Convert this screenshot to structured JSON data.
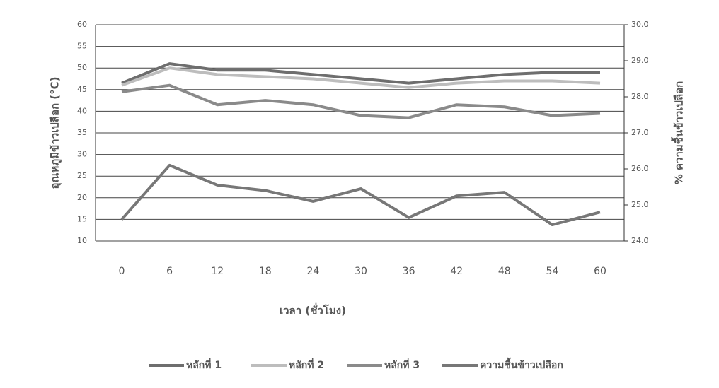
{
  "chart_data": {
    "type": "line",
    "y_label": "อุณหภูมิข้าวเปลือก (°C)",
    "y2_label": "% ความชื้นข้าวเปลือก",
    "x_label": "เวลา (ชั่วโมง)",
    "categories": [
      "0",
      "6",
      "12",
      "18",
      "24",
      "30",
      "36",
      "42",
      "48",
      "54",
      "60"
    ],
    "series": [
      {
        "name": "หลักที่ 1",
        "color": "#6e6e6e",
        "values": [
          46.5,
          51,
          49.5,
          49.5,
          48.5,
          47.5,
          46.5,
          47.5,
          48.5,
          49,
          49
        ]
      },
      {
        "name": "หลักที่ 2",
        "color": "#bdbdbd",
        "values": [
          46,
          50,
          48.5,
          48,
          47.5,
          46.5,
          45.5,
          46.5,
          47,
          47,
          46.5
        ]
      },
      {
        "name": "หลักที่ 3",
        "color": "#8a8a8a",
        "values": [
          44.5,
          46,
          41.5,
          42.5,
          41.5,
          39,
          38.5,
          41.5,
          41,
          39,
          39.5
        ]
      },
      {
        "name": "ความชื้นข้าวเปลือก",
        "color": "#777777",
        "axis": "y2",
        "values": [
          24.6,
          26.1,
          25.55,
          25.4,
          25.1,
          25.45,
          24.65,
          25.25,
          25.35,
          24.45,
          24.8
        ]
      }
    ],
    "ylim": [
      10,
      60
    ],
    "yticks": [
      10,
      15,
      20,
      25,
      30,
      35,
      40,
      45,
      50,
      55,
      60
    ],
    "y2lim": [
      24,
      30
    ],
    "y2ticks": [
      {
        "value": 24,
        "label": "24.0"
      },
      {
        "value": 25,
        "label": "25.0"
      },
      {
        "value": 26,
        "label": "26.0"
      },
      {
        "value": 27,
        "label": "27.0"
      },
      {
        "value": 28,
        "label": "28.0"
      },
      {
        "value": 29,
        "label": "29.0"
      },
      {
        "value": 30,
        "label": "30.0"
      }
    ],
    "grid": true
  }
}
